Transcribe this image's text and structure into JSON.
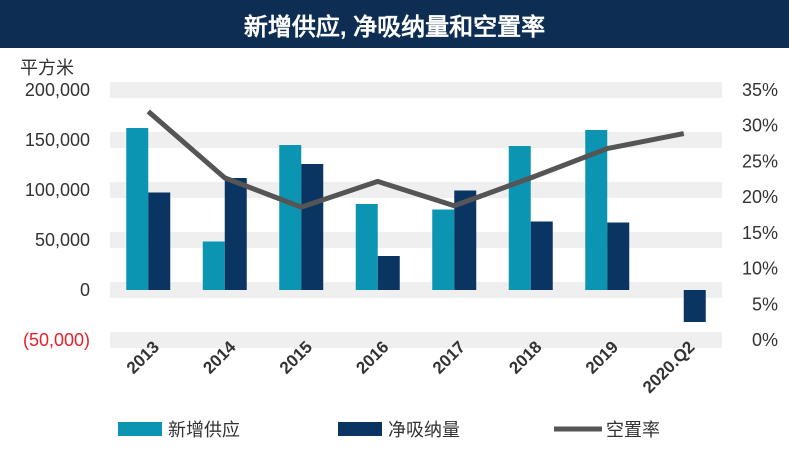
{
  "chart_data": {
    "type": "bar+line",
    "title": "新增供应, 净吸纳量和空置率",
    "ylabel_left": "平方米",
    "categories": [
      "2013",
      "2014",
      "2015",
      "2016",
      "2017",
      "2018",
      "2019",
      "2020.Q2"
    ],
    "ylim_left": [
      -50000,
      200000
    ],
    "ylim_right": [
      0,
      35
    ],
    "left_ticks": [
      "(50,000)",
      "0",
      "50,000",
      "100,000",
      "150,000",
      "200,000"
    ],
    "left_tick_values": [
      -50000,
      0,
      50000,
      100000,
      150000,
      200000
    ],
    "right_ticks": [
      "0%",
      "5%",
      "10%",
      "15%",
      "20%",
      "25%",
      "30%",
      "35%"
    ],
    "right_tick_values": [
      0,
      5,
      10,
      15,
      20,
      25,
      30,
      35
    ],
    "series": [
      {
        "name": "新增供应",
        "type": "bar",
        "axis": "left",
        "color": "#0c95b3",
        "values": [
          162000,
          48500,
          145000,
          86000,
          80500,
          144000,
          160000,
          null
        ]
      },
      {
        "name": "净吸纳量",
        "type": "bar",
        "axis": "left",
        "color": "#0a3462",
        "values": [
          97500,
          112000,
          126000,
          34000,
          99500,
          68500,
          67500,
          -32000
        ]
      },
      {
        "name": "空置率",
        "type": "line",
        "axis": "right",
        "unit": "%",
        "color": "#555555",
        "values": [
          32.0,
          22.7,
          18.6,
          22.2,
          18.8,
          22.7,
          26.8,
          28.9
        ]
      }
    ],
    "grid": "horizontal bands",
    "legend": "bottom"
  }
}
